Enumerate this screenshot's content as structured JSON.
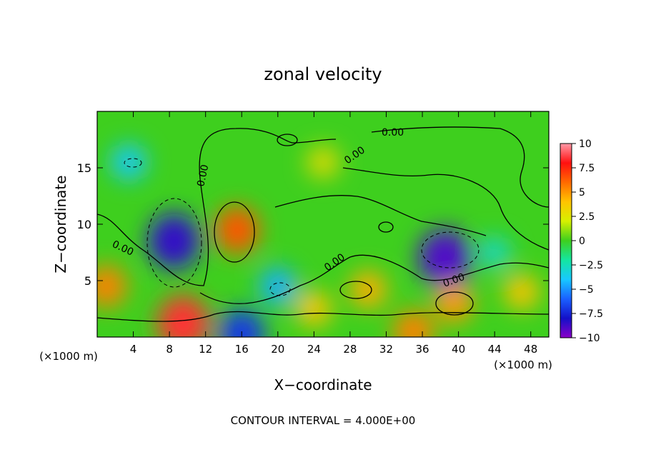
{
  "chart_data": {
    "type": "heatmap",
    "title": "zonal velocity",
    "xlabel": "X−coordinate",
    "ylabel": "Z−coordinate",
    "x_unit": "(×1000 m)",
    "x_ticks": [
      "4",
      "8",
      "12",
      "16",
      "20",
      "24",
      "28",
      "32",
      "36",
      "40",
      "44",
      "48"
    ],
    "y_ticks": [
      "5",
      "10",
      "15"
    ],
    "xlim": [
      0,
      50
    ],
    "ylim": [
      0,
      20
    ],
    "colorbar": {
      "ticks": [
        "10",
        "7.5",
        "5",
        "2.5",
        "0",
        "−2.5",
        "−5",
        "−7.5",
        "−10"
      ],
      "range": [
        -10,
        10
      ],
      "colors": [
        "#ff9aa8",
        "#ff1010",
        "#ff6a00",
        "#ffc400",
        "#d6f000",
        "#3ecf1e",
        "#14e6a0",
        "#18c8ff",
        "#1a60ff",
        "#1410c8",
        "#8a00c8"
      ]
    },
    "contour_label": "0.00",
    "footer": "CONTOUR INTERVAL = 4.000E+00",
    "features": [
      {
        "x": 8.5,
        "z": 8.5,
        "value": -8.5
      },
      {
        "x": 15.5,
        "z": 9.5,
        "value": 6.5
      },
      {
        "x": 38.5,
        "z": 7.0,
        "value": -9.0
      },
      {
        "x": 9.5,
        "z": 1.2,
        "value": 8.5
      },
      {
        "x": 1.0,
        "z": 4.5,
        "value": 5.5
      },
      {
        "x": 30.0,
        "z": 4.2,
        "value": 4.5
      },
      {
        "x": 39.5,
        "z": 3.0,
        "value": 5.0
      },
      {
        "x": 3.5,
        "z": 15.5,
        "value": -4.0
      },
      {
        "x": 16.0,
        "z": 0.3,
        "value": -7.0
      },
      {
        "x": 35.0,
        "z": 0.5,
        "value": 5.5
      },
      {
        "x": 24.0,
        "z": 2.5,
        "value": 4.0
      },
      {
        "x": 25.0,
        "z": 15.5,
        "value": 3.0
      },
      {
        "x": 20.0,
        "z": 4.5,
        "value": -4.5
      },
      {
        "x": 44.0,
        "z": 7.5,
        "value": -3.0
      },
      {
        "x": 47.0,
        "z": 4.0,
        "value": 4.0
      }
    ]
  }
}
